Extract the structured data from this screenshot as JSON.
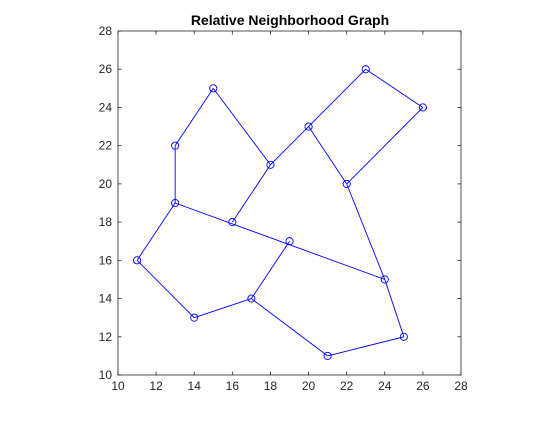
{
  "chart_data": {
    "type": "scatter",
    "title": "Relative Neighborhood Graph",
    "xlabel": "",
    "ylabel": "",
    "xlim": [
      10,
      28
    ],
    "ylim": [
      10,
      28
    ],
    "xticks": [
      10,
      12,
      14,
      16,
      18,
      20,
      22,
      24,
      26,
      28
    ],
    "yticks": [
      10,
      12,
      14,
      16,
      18,
      20,
      22,
      24,
      26,
      28
    ],
    "grid": false,
    "legend": "none",
    "colors": {
      "series": "#0000ff",
      "axis": "#262626",
      "background": "#ffffff"
    },
    "nodes": [
      {
        "x": 11,
        "y": 16
      },
      {
        "x": 13,
        "y": 19
      },
      {
        "x": 13,
        "y": 22
      },
      {
        "x": 14,
        "y": 13
      },
      {
        "x": 15,
        "y": 25
      },
      {
        "x": 16,
        "y": 18
      },
      {
        "x": 17,
        "y": 14
      },
      {
        "x": 18,
        "y": 21
      },
      {
        "x": 19,
        "y": 17
      },
      {
        "x": 20,
        "y": 23
      },
      {
        "x": 21,
        "y": 11
      },
      {
        "x": 22,
        "y": 20
      },
      {
        "x": 23,
        "y": 26
      },
      {
        "x": 24,
        "y": 15
      },
      {
        "x": 25,
        "y": 12
      },
      {
        "x": 26,
        "y": 24
      }
    ],
    "edges": [
      [
        0,
        1
      ],
      [
        0,
        3
      ],
      [
        1,
        2
      ],
      [
        1,
        13
      ],
      [
        2,
        4
      ],
      [
        4,
        7
      ],
      [
        7,
        5
      ],
      [
        7,
        9
      ],
      [
        9,
        12
      ],
      [
        9,
        11
      ],
      [
        12,
        15
      ],
      [
        15,
        11
      ],
      [
        11,
        13
      ],
      [
        13,
        14
      ],
      [
        14,
        10
      ],
      [
        10,
        6
      ],
      [
        6,
        3
      ],
      [
        6,
        8
      ]
    ]
  }
}
